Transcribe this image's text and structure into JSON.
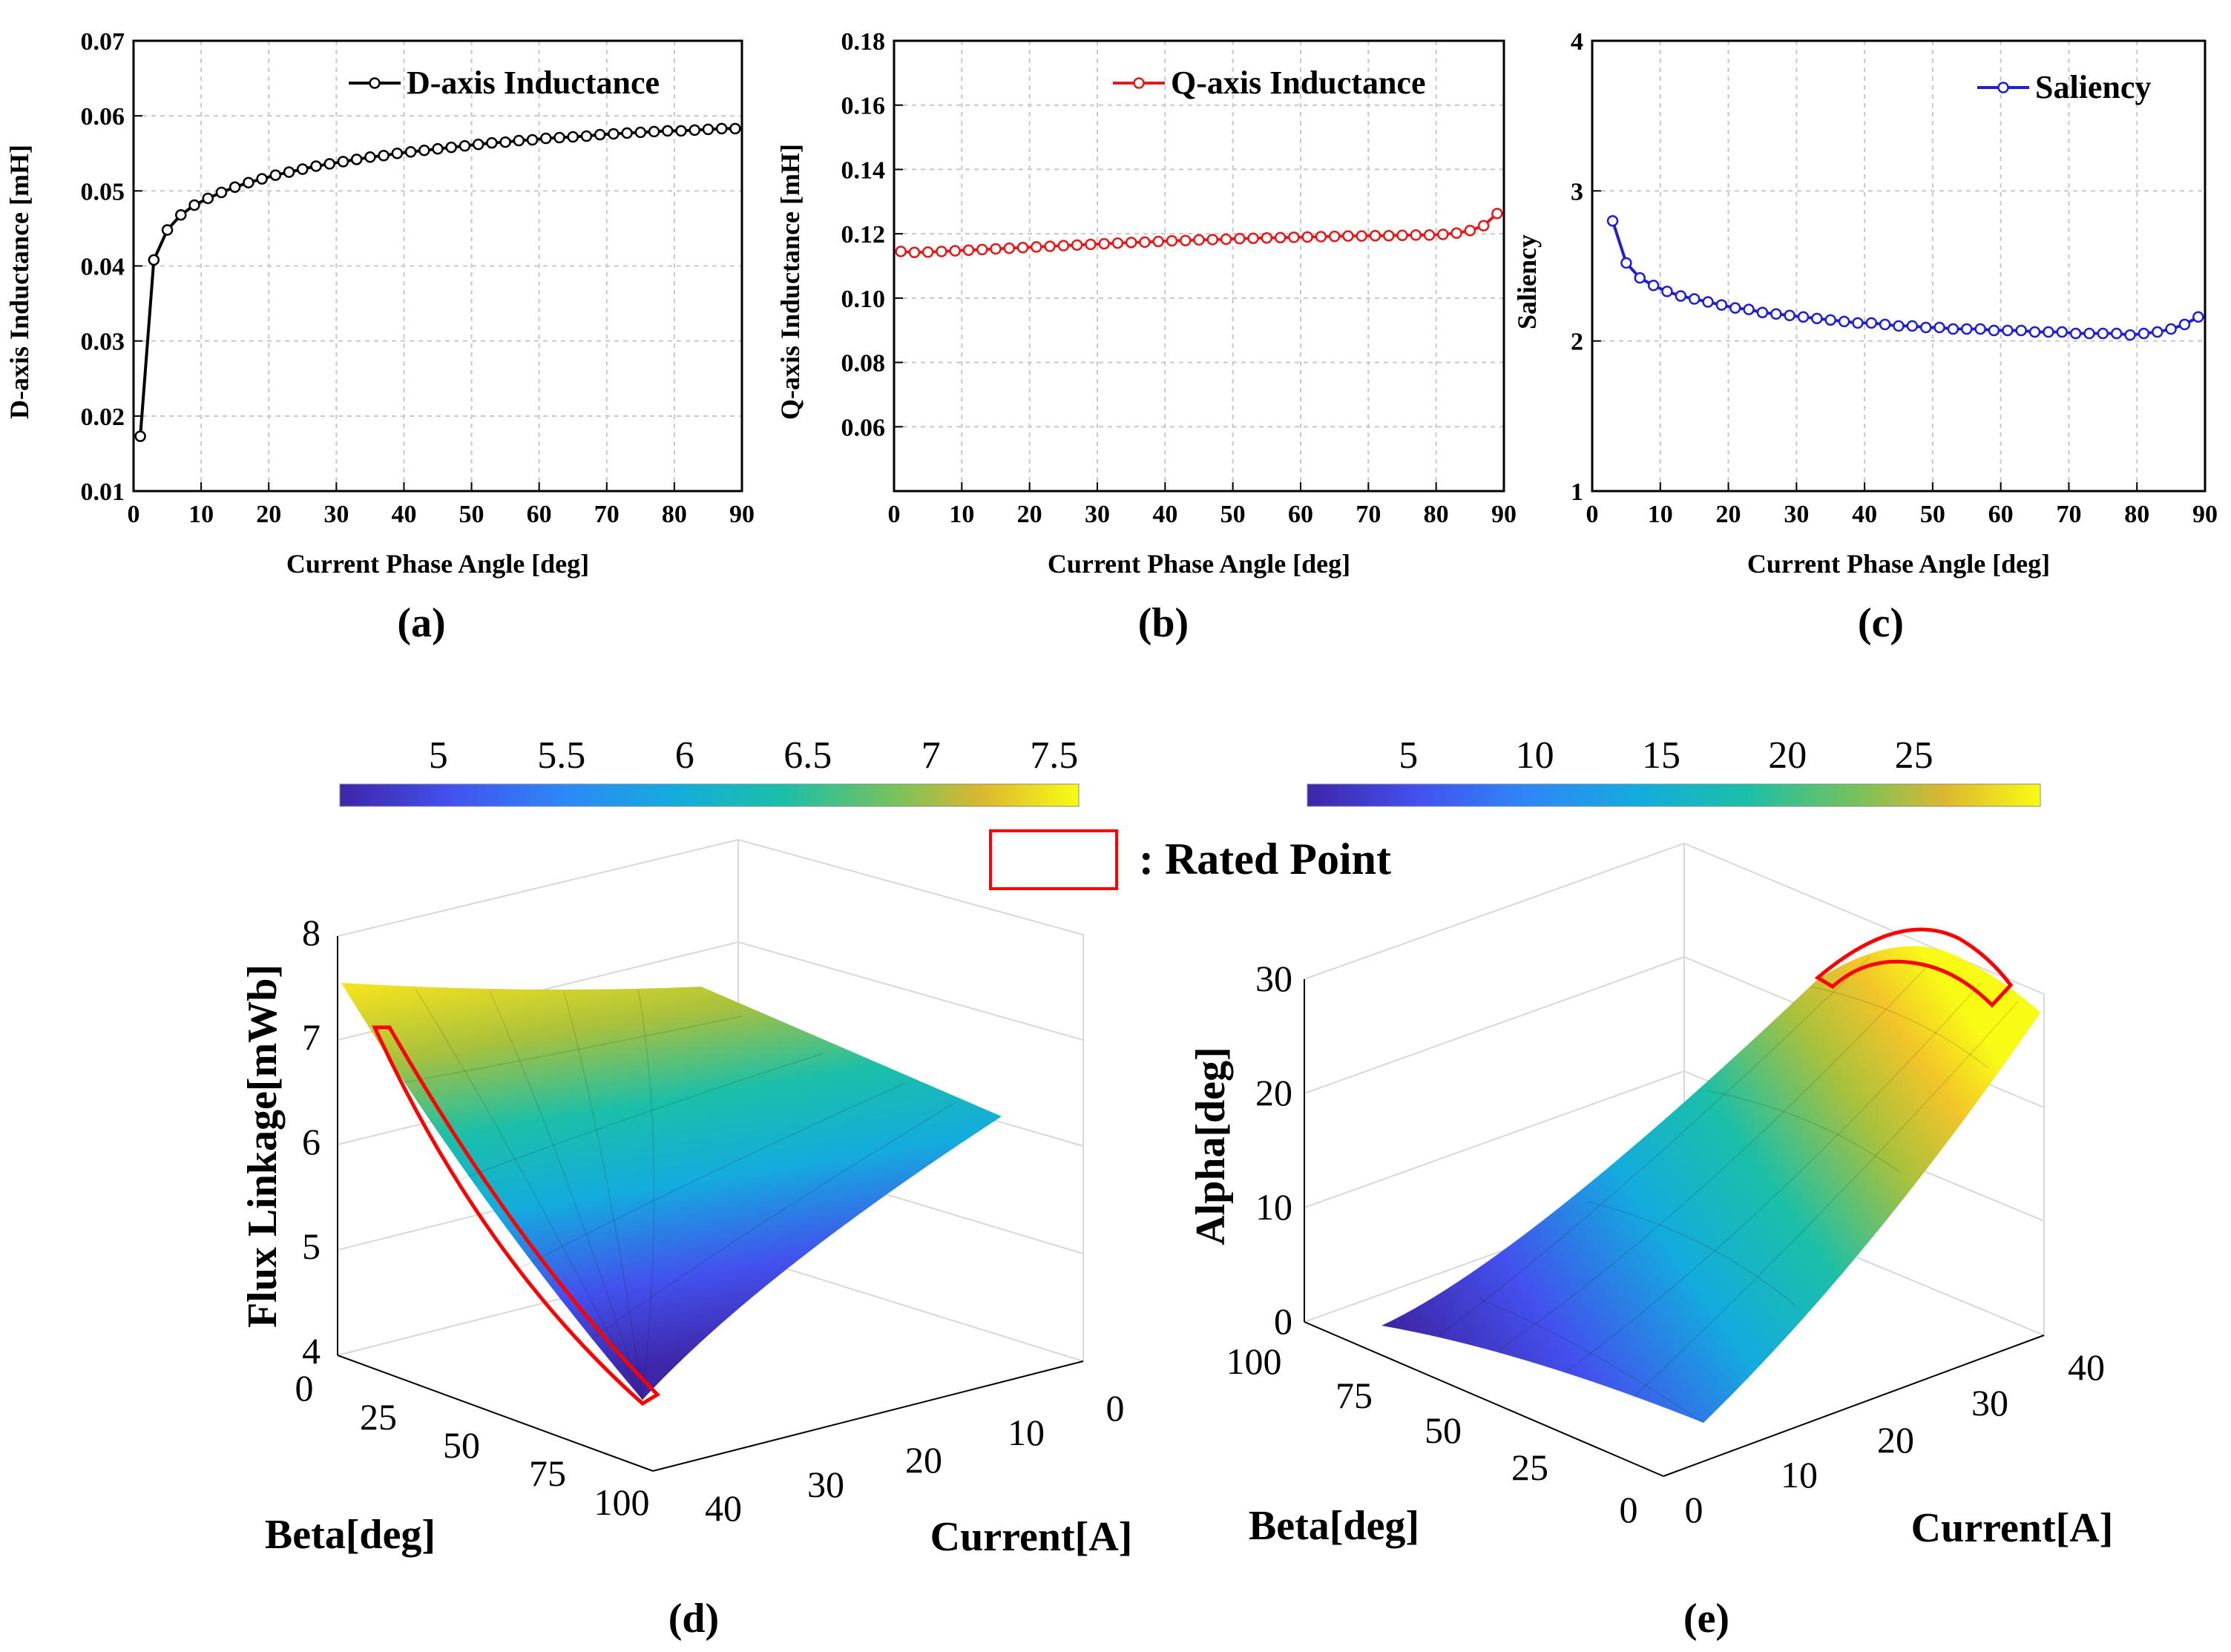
{
  "colors": {
    "d_series": "#000000",
    "q_series": "#e31a1c",
    "saliency_series": "#1f1fd1",
    "rated_box": "#ff0000",
    "grid": "#c8c8c8",
    "colormap": "parula"
  },
  "chart_data": [
    {
      "id": "a",
      "type": "line",
      "panel_label": "(a)",
      "xlabel": "Current Phase Angle [deg]",
      "ylabel": "D-axis Inductance [mH]",
      "xlim": [
        0,
        90
      ],
      "ylim": [
        0.01,
        0.07
      ],
      "xticks": [
        0,
        10,
        20,
        30,
        40,
        50,
        60,
        70,
        80,
        90
      ],
      "yticks": [
        0.01,
        0.02,
        0.03,
        0.04,
        0.05,
        0.06,
        0.07
      ],
      "ytick_labels": [
        "0.01",
        "0.02",
        "0.03",
        "0.04",
        "0.05",
        "0.06",
        "0.07"
      ],
      "grid": true,
      "legend_position": "top-right",
      "marker": "open-circle",
      "series": [
        {
          "name": "D-axis Inductance",
          "color": "#000000",
          "x": [
            1,
            3,
            5,
            7,
            9,
            11,
            13,
            15,
            17,
            19,
            21,
            23,
            25,
            27,
            29,
            31,
            33,
            35,
            37,
            39,
            41,
            43,
            45,
            47,
            49,
            51,
            53,
            55,
            57,
            59,
            61,
            63,
            65,
            67,
            69,
            71,
            73,
            75,
            77,
            79,
            81,
            83,
            85,
            87,
            89
          ],
          "y": [
            0.0173,
            0.0408,
            0.0448,
            0.0468,
            0.0481,
            0.049,
            0.0498,
            0.0505,
            0.0511,
            0.0516,
            0.0521,
            0.0525,
            0.0529,
            0.0533,
            0.0536,
            0.0539,
            0.0542,
            0.0545,
            0.0547,
            0.055,
            0.0552,
            0.0554,
            0.0556,
            0.0558,
            0.056,
            0.0562,
            0.0564,
            0.0565,
            0.0567,
            0.0568,
            0.057,
            0.0571,
            0.0572,
            0.0573,
            0.0575,
            0.0576,
            0.0577,
            0.0578,
            0.0579,
            0.058,
            0.058,
            0.0581,
            0.0582,
            0.0583,
            0.0583
          ]
        }
      ]
    },
    {
      "id": "b",
      "type": "line",
      "panel_label": "(b)",
      "xlabel": "Current Phase Angle [deg]",
      "ylabel": "Q-axis Inductance [mH]",
      "xlim": [
        0,
        90
      ],
      "ylim": [
        0.04,
        0.18
      ],
      "xticks": [
        0,
        10,
        20,
        30,
        40,
        50,
        60,
        70,
        80,
        90
      ],
      "yticks": [
        0.06,
        0.08,
        0.1,
        0.12,
        0.14,
        0.16,
        0.18
      ],
      "ytick_labels": [
        "0.06",
        "0.08",
        "0.10",
        "0.12",
        "0.14",
        "0.16",
        "0.18"
      ],
      "grid": true,
      "legend_position": "top-right",
      "marker": "open-circle",
      "series": [
        {
          "name": "Q-axis Inductance",
          "color": "#e31a1c",
          "x": [
            1,
            3,
            5,
            7,
            9,
            11,
            13,
            15,
            17,
            19,
            21,
            23,
            25,
            27,
            29,
            31,
            33,
            35,
            37,
            39,
            41,
            43,
            45,
            47,
            49,
            51,
            53,
            55,
            57,
            59,
            61,
            63,
            65,
            67,
            69,
            71,
            73,
            75,
            77,
            79,
            81,
            83,
            85,
            87,
            89
          ],
          "y": [
            0.1145,
            0.1142,
            0.1143,
            0.1145,
            0.1147,
            0.1149,
            0.1151,
            0.1153,
            0.1155,
            0.1157,
            0.1159,
            0.1161,
            0.1163,
            0.1165,
            0.1167,
            0.1169,
            0.1171,
            0.1173,
            0.1174,
            0.1176,
            0.1178,
            0.1179,
            0.1181,
            0.1182,
            0.1183,
            0.1185,
            0.1186,
            0.1187,
            0.1188,
            0.1189,
            0.119,
            0.1191,
            0.1192,
            0.1193,
            0.1193,
            0.1194,
            0.1194,
            0.1195,
            0.1196,
            0.1196,
            0.1198,
            0.1202,
            0.121,
            0.1225,
            0.1263
          ]
        }
      ]
    },
    {
      "id": "c",
      "type": "line",
      "panel_label": "(c)",
      "xlabel": "Current Phase Angle [deg]",
      "ylabel": "Saliency",
      "xlim": [
        0,
        90
      ],
      "ylim": [
        1,
        4
      ],
      "xticks": [
        0,
        10,
        20,
        30,
        40,
        50,
        60,
        70,
        80,
        90
      ],
      "yticks": [
        1,
        2,
        3,
        4
      ],
      "ytick_labels": [
        "1",
        "2",
        "3",
        "4"
      ],
      "grid": true,
      "legend_position": "top-right",
      "marker": "open-circle",
      "series": [
        {
          "name": "Saliency",
          "color": "#1f1fd1",
          "x": [
            3,
            5,
            7,
            9,
            11,
            13,
            15,
            17,
            19,
            21,
            23,
            25,
            27,
            29,
            31,
            33,
            35,
            37,
            39,
            41,
            43,
            45,
            47,
            49,
            51,
            53,
            55,
            57,
            59,
            61,
            63,
            65,
            67,
            69,
            71,
            73,
            75,
            77,
            79,
            81,
            83,
            85,
            87,
            89
          ],
          "y": [
            2.8,
            2.52,
            2.42,
            2.37,
            2.33,
            2.3,
            2.28,
            2.26,
            2.24,
            2.22,
            2.21,
            2.19,
            2.18,
            2.17,
            2.16,
            2.15,
            2.14,
            2.13,
            2.12,
            2.12,
            2.11,
            2.1,
            2.1,
            2.09,
            2.09,
            2.08,
            2.08,
            2.08,
            2.07,
            2.07,
            2.07,
            2.06,
            2.06,
            2.06,
            2.05,
            2.05,
            2.05,
            2.05,
            2.04,
            2.05,
            2.06,
            2.08,
            2.11,
            2.16
          ]
        }
      ]
    },
    {
      "id": "d",
      "type": "surface",
      "panel_label": "(d)",
      "xlabel": "Beta[deg]",
      "ylabel": "Current[A]",
      "zlabel": "Flux Linkage[mWb]",
      "beta_ticks": [
        "0",
        "25",
        "50",
        "75",
        "100"
      ],
      "current_ticks": [
        "0",
        "10",
        "20",
        "30",
        "40"
      ],
      "z_ticks": [
        "4",
        "5",
        "6",
        "7",
        "8"
      ],
      "zlim": [
        4,
        8
      ],
      "colorbar": {
        "ticks": [
          "5",
          "5.5",
          "6",
          "6.5",
          "7",
          "7.5"
        ],
        "range": [
          4.6,
          7.6
        ]
      },
      "corner_values": {
        "beta0_current0": 7.5,
        "beta0_current40": 7.1,
        "beta100_current0": 6.7,
        "beta100_current40": 4.3
      },
      "rated_region": "current = 40 A edge, beta 0 to 100 deg"
    },
    {
      "id": "e",
      "type": "surface",
      "panel_label": "(e)",
      "xlabel": "Beta[deg]",
      "ylabel": "Current[A]",
      "zlabel": "Alpha[deg]",
      "beta_ticks": [
        "100",
        "75",
        "50",
        "25",
        "0"
      ],
      "current_ticks": [
        "0",
        "10",
        "20",
        "30",
        "40"
      ],
      "z_ticks": [
        "0",
        "10",
        "20",
        "30"
      ],
      "zlim": [
        0,
        30
      ],
      "colorbar": {
        "ticks": [
          "5",
          "10",
          "15",
          "20",
          "25"
        ],
        "range": [
          1,
          30
        ]
      },
      "corner_values": {
        "beta100_current0": 1,
        "beta0_current0": 2,
        "beta100_current40": 29,
        "beta0_current40": 28
      },
      "rated_region": "current = 40 A edge, ridge peak"
    }
  ],
  "rated_legend": ": Rated Point"
}
